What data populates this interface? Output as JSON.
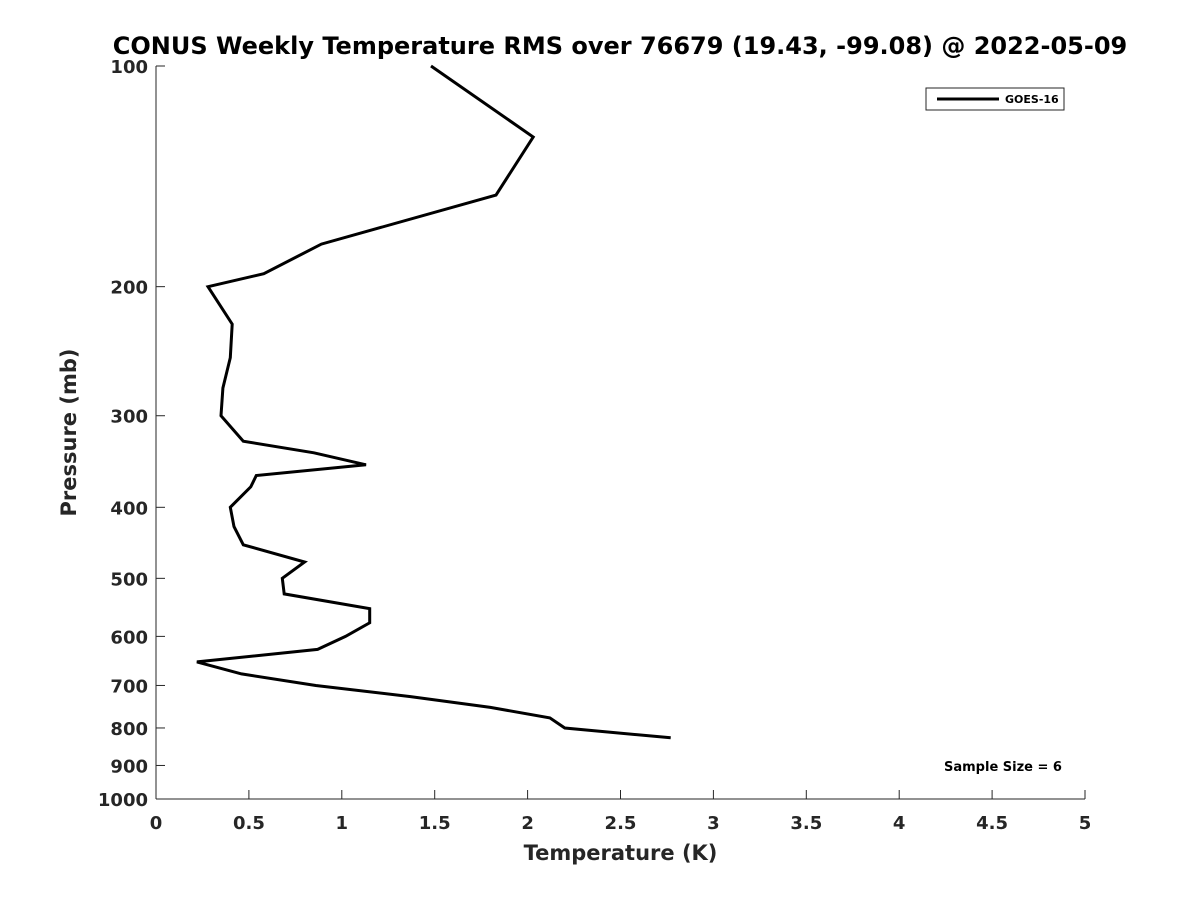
{
  "chart_data": {
    "type": "line",
    "title": "CONUS Weekly Temperature RMS over 76679 (19.43, -99.08) @ 2022-05-09",
    "xlabel": "Temperature (K)",
    "ylabel": "Pressure (mb)",
    "xlim": [
      0,
      5
    ],
    "ylim": [
      100,
      1000
    ],
    "y_scale": "log",
    "y_reversed": true,
    "grid": false,
    "x_ticks": [
      0,
      0.5,
      1,
      1.5,
      2,
      2.5,
      3,
      3.5,
      4,
      4.5,
      5
    ],
    "x_tick_labels": [
      "0",
      "0.5",
      "1",
      "1.5",
      "2",
      "2.5",
      "3",
      "3.5",
      "4",
      "4.5",
      "5"
    ],
    "y_ticks": [
      100,
      200,
      300,
      400,
      500,
      600,
      700,
      800,
      900,
      1000
    ],
    "y_tick_labels": [
      "100",
      "200",
      "300",
      "400",
      "500",
      "600",
      "700",
      "800",
      "900",
      "1000"
    ],
    "legend": {
      "position": "top-right",
      "entries": [
        "GOES-16"
      ]
    },
    "annotation": "Sample Size = 6",
    "series": [
      {
        "name": "GOES-16",
        "color": "#000000",
        "points": [
          {
            "x": 1.48,
            "p": 100
          },
          {
            "x": 2.03,
            "p": 125
          },
          {
            "x": 1.83,
            "p": 150
          },
          {
            "x": 0.89,
            "p": 175
          },
          {
            "x": 0.58,
            "p": 192
          },
          {
            "x": 0.28,
            "p": 200
          },
          {
            "x": 0.41,
            "p": 225
          },
          {
            "x": 0.4,
            "p": 250
          },
          {
            "x": 0.36,
            "p": 275
          },
          {
            "x": 0.35,
            "p": 300
          },
          {
            "x": 0.47,
            "p": 325
          },
          {
            "x": 0.85,
            "p": 337
          },
          {
            "x": 1.13,
            "p": 350
          },
          {
            "x": 0.54,
            "p": 362
          },
          {
            "x": 0.51,
            "p": 375
          },
          {
            "x": 0.4,
            "p": 400
          },
          {
            "x": 0.42,
            "p": 425
          },
          {
            "x": 0.47,
            "p": 450
          },
          {
            "x": 0.8,
            "p": 475
          },
          {
            "x": 0.68,
            "p": 500
          },
          {
            "x": 0.69,
            "p": 525
          },
          {
            "x": 1.15,
            "p": 550
          },
          {
            "x": 1.15,
            "p": 575
          },
          {
            "x": 1.02,
            "p": 600
          },
          {
            "x": 0.87,
            "p": 625
          },
          {
            "x": 0.22,
            "p": 650
          },
          {
            "x": 0.46,
            "p": 675
          },
          {
            "x": 0.86,
            "p": 700
          },
          {
            "x": 1.37,
            "p": 725
          },
          {
            "x": 1.8,
            "p": 750
          },
          {
            "x": 2.12,
            "p": 775
          },
          {
            "x": 2.2,
            "p": 800
          },
          {
            "x": 2.77,
            "p": 825
          }
        ]
      }
    ]
  }
}
